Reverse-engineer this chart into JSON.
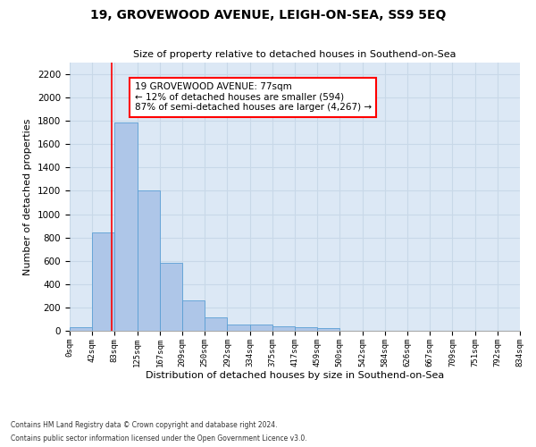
{
  "title": "19, GROVEWOOD AVENUE, LEIGH-ON-SEA, SS9 5EQ",
  "subtitle": "Size of property relative to detached houses in Southend-on-Sea",
  "xlabel": "Distribution of detached houses by size in Southend-on-Sea",
  "ylabel": "Number of detached properties",
  "bin_edges": [
    0,
    42,
    83,
    125,
    167,
    209,
    250,
    292,
    334,
    375,
    417,
    459,
    500,
    542,
    584,
    626,
    667,
    709,
    751,
    792,
    834
  ],
  "bar_heights": [
    30,
    840,
    1790,
    1200,
    585,
    260,
    115,
    50,
    50,
    35,
    30,
    20,
    0,
    0,
    0,
    0,
    0,
    0,
    0,
    0
  ],
  "bar_color": "#aec6e8",
  "bar_edge_color": "#5a9fd4",
  "grid_color": "#c8d8e8",
  "background_color": "#dce8f5",
  "property_line_x": 77,
  "annotation_text": "19 GROVEWOOD AVENUE: 77sqm\n← 12% of detached houses are smaller (594)\n87% of semi-detached houses are larger (4,267) →",
  "annotation_box_color": "white",
  "annotation_box_edge_color": "red",
  "vline_color": "red",
  "ylim": [
    0,
    2300
  ],
  "yticks": [
    0,
    200,
    400,
    600,
    800,
    1000,
    1200,
    1400,
    1600,
    1800,
    2000,
    2200
  ],
  "footnote1": "Contains HM Land Registry data © Crown copyright and database right 2024.",
  "footnote2": "Contains public sector information licensed under the Open Government Licence v3.0."
}
